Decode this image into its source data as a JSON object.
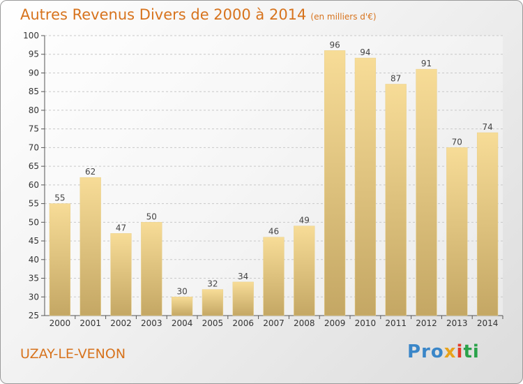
{
  "chart_data": {
    "type": "bar",
    "title": "Autres Revenus Divers de 2000 à 2014",
    "subtitle": "(en milliers d'€)",
    "categories": [
      "2000",
      "2001",
      "2002",
      "2003",
      "2004",
      "2005",
      "2006",
      "2007",
      "2008",
      "2009",
      "2010",
      "2011",
      "2012",
      "2013",
      "2014"
    ],
    "values": [
      55,
      62,
      47,
      50,
      30,
      32,
      34,
      46,
      49,
      96,
      94,
      87,
      91,
      70,
      74
    ],
    "ylim": [
      25,
      100
    ],
    "yticks": [
      25,
      30,
      35,
      40,
      45,
      50,
      55,
      60,
      65,
      70,
      75,
      80,
      85,
      90,
      95,
      100
    ],
    "grid": "horizontal dashed",
    "bar_color_top": "#f7dc97",
    "bar_color_bottom": "#c4a764",
    "text_color": "#d7731d"
  },
  "place": "UZAY-LE-VENON",
  "logo": {
    "p1": "Pro",
    "p2": "x",
    "p3": "i",
    "p4": "ti",
    "alt": "Proxiti"
  }
}
